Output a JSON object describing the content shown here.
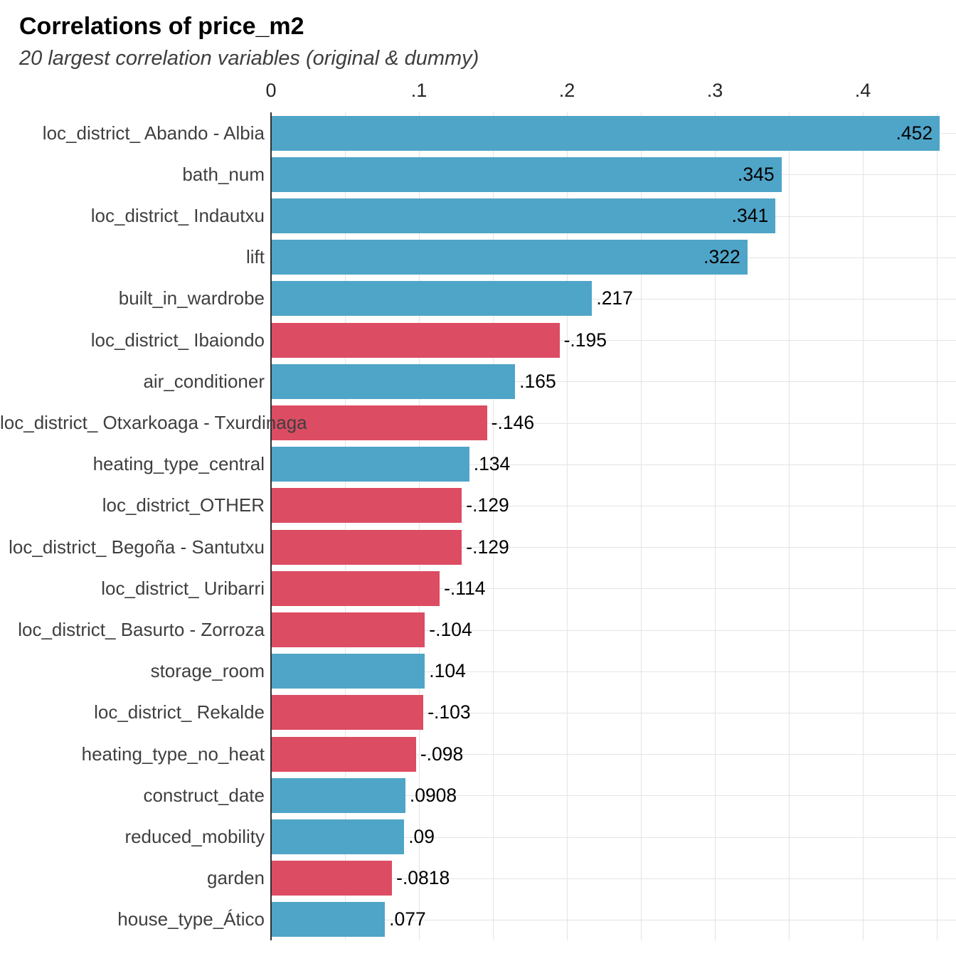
{
  "chart_data": {
    "type": "bar",
    "orientation": "horizontal",
    "title": "Correlations of price_m2",
    "subtitle": "20 largest correlation variables (original & dummy)",
    "xlim": [
      0,
      0.463
    ],
    "x_ticks": [
      {
        "label": "0",
        "value": 0.0
      },
      {
        "label": ".1",
        "value": 0.1
      },
      {
        "label": ".2",
        "value": 0.2
      },
      {
        "label": ".3",
        "value": 0.3
      },
      {
        "label": ".4",
        "value": 0.4
      }
    ],
    "minor_grid_step": 0.05,
    "grid": "vertical major and minor lines, horizontal lines at row centers",
    "legend": "none",
    "colors": {
      "positive": "#4FA5C8",
      "negative": "#DC4C63",
      "gridline": "#e4e4e4",
      "axis_line": "#303030"
    },
    "bars": [
      {
        "category": "loc_district_ Abando - Albia",
        "value": 0.452,
        "label": ".452",
        "sign": "positive",
        "label_placement": "inside"
      },
      {
        "category": "bath_num",
        "value": 0.345,
        "label": ".345",
        "sign": "positive",
        "label_placement": "inside"
      },
      {
        "category": "loc_district_ Indautxu",
        "value": 0.341,
        "label": ".341",
        "sign": "positive",
        "label_placement": "inside"
      },
      {
        "category": "lift",
        "value": 0.322,
        "label": ".322",
        "sign": "positive",
        "label_placement": "inside"
      },
      {
        "category": "built_in_wardrobe",
        "value": 0.217,
        "label": ".217",
        "sign": "positive",
        "label_placement": "outside"
      },
      {
        "category": "loc_district_ Ibaiondo",
        "value": -0.195,
        "label": "-.195",
        "sign": "negative",
        "label_placement": "outside"
      },
      {
        "category": "air_conditioner",
        "value": 0.165,
        "label": ".165",
        "sign": "positive",
        "label_placement": "outside"
      },
      {
        "category": "loc_district_ Otxarkoaga - Txurdinaga",
        "value": -0.146,
        "label": "-.146",
        "sign": "negative",
        "label_placement": "outside"
      },
      {
        "category": "heating_type_central",
        "value": 0.134,
        "label": ".134",
        "sign": "positive",
        "label_placement": "outside"
      },
      {
        "category": "loc_district_OTHER",
        "value": -0.129,
        "label": "-.129",
        "sign": "negative",
        "label_placement": "outside"
      },
      {
        "category": "loc_district_ Begoña - Santutxu",
        "value": -0.129,
        "label": "-.129",
        "sign": "negative",
        "label_placement": "outside"
      },
      {
        "category": "loc_district_ Uribarri",
        "value": -0.114,
        "label": "-.114",
        "sign": "negative",
        "label_placement": "outside"
      },
      {
        "category": "loc_district_ Basurto - Zorroza",
        "value": -0.104,
        "label": "-.104",
        "sign": "negative",
        "label_placement": "outside"
      },
      {
        "category": "storage_room",
        "value": 0.104,
        "label": ".104",
        "sign": "positive",
        "label_placement": "outside"
      },
      {
        "category": "loc_district_ Rekalde",
        "value": -0.103,
        "label": "-.103",
        "sign": "negative",
        "label_placement": "outside"
      },
      {
        "category": "heating_type_no_heat",
        "value": -0.098,
        "label": "-.098",
        "sign": "negative",
        "label_placement": "outside"
      },
      {
        "category": "construct_date",
        "value": 0.0908,
        "label": ".0908",
        "sign": "positive",
        "label_placement": "outside"
      },
      {
        "category": "reduced_mobility",
        "value": 0.09,
        "label": ".09",
        "sign": "positive",
        "label_placement": "outside"
      },
      {
        "category": "garden",
        "value": -0.0818,
        "label": "-.0818",
        "sign": "negative",
        "label_placement": "outside"
      },
      {
        "category": "house_type_Ático",
        "value": 0.077,
        "label": ".077",
        "sign": "positive",
        "label_placement": "outside"
      }
    ]
  }
}
